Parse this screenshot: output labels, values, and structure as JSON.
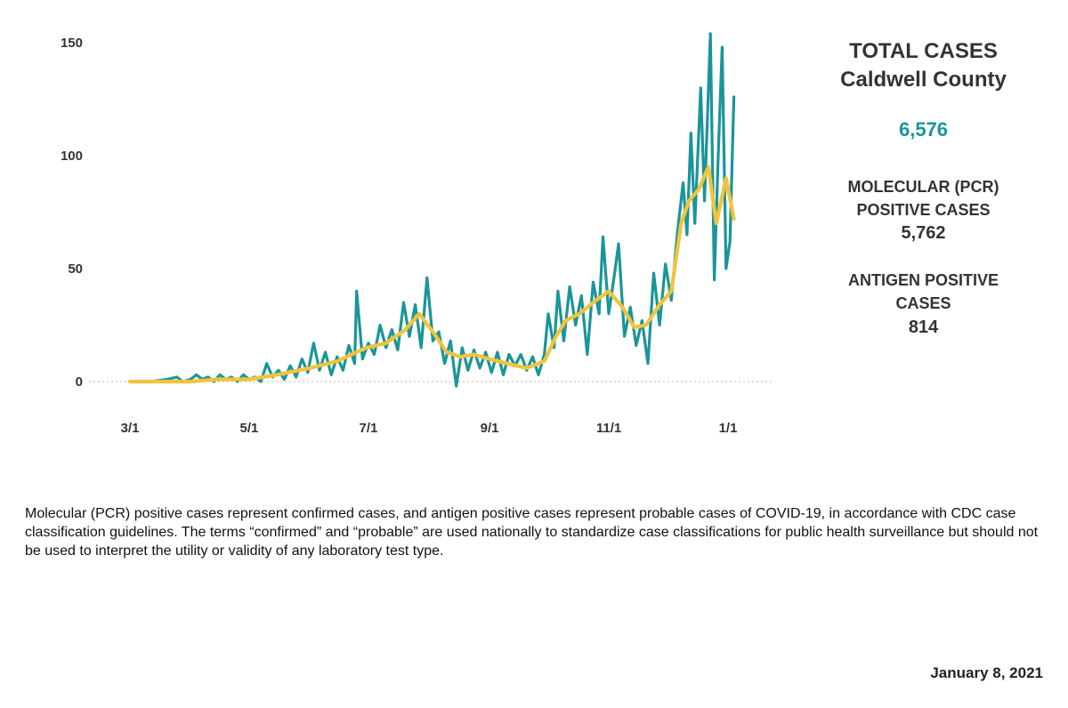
{
  "side_panel": {
    "title_line1": "TOTAL CASES",
    "title_line2": "Caldwell County",
    "total": "6,576",
    "pcr_label_line1": "MOLECULAR (PCR)",
    "pcr_label_line2": "POSITIVE CASES",
    "pcr_value": "5,762",
    "antigen_label_line1": "ANTIGEN POSITIVE",
    "antigen_label_line2": "CASES",
    "antigen_value": "814"
  },
  "footnote": "Molecular (PCR) positive cases represent confirmed cases, and antigen positive cases represent probable cases of COVID-19, in accordance with CDC case classification guidelines. The terms “confirmed” and “probable” are used nationally to standardize case classifications for public health surveillance but should not be used to interpret the utility or validity of any laboratory test type.",
  "date": "January 8, 2021",
  "colors": {
    "daily": "#1a9599",
    "average": "#f0c43c",
    "text": "#333333",
    "zero_line": "#bbbbbb"
  },
  "chart_data": {
    "type": "line",
    "title": "",
    "xlabel": "",
    "ylabel": "",
    "ylim": [
      0,
      150
    ],
    "y_ticks": [
      0,
      50,
      100,
      150
    ],
    "x_ticks": [
      {
        "label": "3/1",
        "date": "2020-03-01"
      },
      {
        "label": "5/1",
        "date": "2020-05-01"
      },
      {
        "label": "7/1",
        "date": "2020-07-01"
      },
      {
        "label": "9/1",
        "date": "2020-09-01"
      },
      {
        "label": "11/1",
        "date": "2020-11-01"
      },
      {
        "label": "1/1",
        "date": "2021-01-01"
      }
    ],
    "grid": false,
    "series": [
      {
        "key": "daily",
        "points": [
          [
            "2020-03-01",
            0
          ],
          [
            "2020-03-12",
            0
          ],
          [
            "2020-03-20",
            1
          ],
          [
            "2020-03-25",
            2
          ],
          [
            "2020-03-28",
            0
          ],
          [
            "2020-04-01",
            1
          ],
          [
            "2020-04-04",
            3
          ],
          [
            "2020-04-07",
            1
          ],
          [
            "2020-04-10",
            2
          ],
          [
            "2020-04-13",
            0
          ],
          [
            "2020-04-16",
            3
          ],
          [
            "2020-04-19",
            1
          ],
          [
            "2020-04-22",
            2
          ],
          [
            "2020-04-25",
            0
          ],
          [
            "2020-04-28",
            3
          ],
          [
            "2020-05-01",
            1
          ],
          [
            "2020-05-04",
            2
          ],
          [
            "2020-05-07",
            0
          ],
          [
            "2020-05-10",
            8
          ],
          [
            "2020-05-13",
            2
          ],
          [
            "2020-05-16",
            5
          ],
          [
            "2020-05-19",
            1
          ],
          [
            "2020-05-22",
            7
          ],
          [
            "2020-05-25",
            2
          ],
          [
            "2020-05-28",
            10
          ],
          [
            "2020-05-31",
            4
          ],
          [
            "2020-06-03",
            17
          ],
          [
            "2020-06-06",
            5
          ],
          [
            "2020-06-09",
            13
          ],
          [
            "2020-06-12",
            3
          ],
          [
            "2020-06-15",
            11
          ],
          [
            "2020-06-18",
            5
          ],
          [
            "2020-06-21",
            16
          ],
          [
            "2020-06-24",
            8
          ],
          [
            "2020-06-25",
            40
          ],
          [
            "2020-06-28",
            10
          ],
          [
            "2020-07-01",
            17
          ],
          [
            "2020-07-04",
            12
          ],
          [
            "2020-07-07",
            25
          ],
          [
            "2020-07-10",
            15
          ],
          [
            "2020-07-13",
            23
          ],
          [
            "2020-07-16",
            14
          ],
          [
            "2020-07-19",
            35
          ],
          [
            "2020-07-22",
            20
          ],
          [
            "2020-07-25",
            34
          ],
          [
            "2020-07-28",
            15
          ],
          [
            "2020-07-31",
            46
          ],
          [
            "2020-08-03",
            18
          ],
          [
            "2020-08-06",
            22
          ],
          [
            "2020-08-09",
            8
          ],
          [
            "2020-08-12",
            18
          ],
          [
            "2020-08-15",
            -2
          ],
          [
            "2020-08-18",
            15
          ],
          [
            "2020-08-21",
            5
          ],
          [
            "2020-08-24",
            14
          ],
          [
            "2020-08-27",
            6
          ],
          [
            "2020-08-30",
            13
          ],
          [
            "2020-09-02",
            4
          ],
          [
            "2020-09-05",
            13
          ],
          [
            "2020-09-08",
            3
          ],
          [
            "2020-09-11",
            12
          ],
          [
            "2020-09-14",
            7
          ],
          [
            "2020-09-17",
            12
          ],
          [
            "2020-09-20",
            5
          ],
          [
            "2020-09-23",
            11
          ],
          [
            "2020-09-26",
            3
          ],
          [
            "2020-09-29",
            12
          ],
          [
            "2020-10-01",
            30
          ],
          [
            "2020-10-04",
            15
          ],
          [
            "2020-10-06",
            40
          ],
          [
            "2020-10-09",
            18
          ],
          [
            "2020-10-12",
            42
          ],
          [
            "2020-10-15",
            25
          ],
          [
            "2020-10-18",
            38
          ],
          [
            "2020-10-21",
            12
          ],
          [
            "2020-10-24",
            44
          ],
          [
            "2020-10-27",
            30
          ],
          [
            "2020-10-29",
            64
          ],
          [
            "2020-11-01",
            30
          ],
          [
            "2020-11-04",
            48
          ],
          [
            "2020-11-06",
            61
          ],
          [
            "2020-11-09",
            20
          ],
          [
            "2020-11-12",
            33
          ],
          [
            "2020-11-15",
            16
          ],
          [
            "2020-11-18",
            27
          ],
          [
            "2020-11-21",
            8
          ],
          [
            "2020-11-24",
            48
          ],
          [
            "2020-11-27",
            25
          ],
          [
            "2020-11-30",
            52
          ],
          [
            "2020-12-03",
            36
          ],
          [
            "2020-12-06",
            65
          ],
          [
            "2020-12-09",
            88
          ],
          [
            "2020-12-11",
            65
          ],
          [
            "2020-12-13",
            110
          ],
          [
            "2020-12-15",
            70
          ],
          [
            "2020-12-18",
            130
          ],
          [
            "2020-12-20",
            80
          ],
          [
            "2020-12-23",
            154
          ],
          [
            "2020-12-25",
            45
          ],
          [
            "2020-12-27",
            100
          ],
          [
            "2020-12-29",
            148
          ],
          [
            "2020-12-31",
            50
          ],
          [
            "2021-01-02",
            62
          ],
          [
            "2021-01-04",
            126
          ]
        ]
      },
      {
        "key": "average",
        "points": [
          [
            "2020-03-01",
            0
          ],
          [
            "2020-04-01",
            0
          ],
          [
            "2020-04-15",
            1
          ],
          [
            "2020-05-01",
            1
          ],
          [
            "2020-05-15",
            3
          ],
          [
            "2020-06-01",
            6
          ],
          [
            "2020-06-15",
            9
          ],
          [
            "2020-06-30",
            15
          ],
          [
            "2020-07-10",
            17
          ],
          [
            "2020-07-20",
            23
          ],
          [
            "2020-07-27",
            30
          ],
          [
            "2020-08-03",
            22
          ],
          [
            "2020-08-10",
            13
          ],
          [
            "2020-08-17",
            11
          ],
          [
            "2020-08-24",
            12
          ],
          [
            "2020-09-01",
            10
          ],
          [
            "2020-09-10",
            8
          ],
          [
            "2020-09-20",
            6
          ],
          [
            "2020-09-29",
            9
          ],
          [
            "2020-10-05",
            20
          ],
          [
            "2020-10-10",
            27
          ],
          [
            "2020-10-17",
            30
          ],
          [
            "2020-10-24",
            35
          ],
          [
            "2020-11-01",
            40
          ],
          [
            "2020-11-08",
            33
          ],
          [
            "2020-11-14",
            24
          ],
          [
            "2020-11-20",
            25
          ],
          [
            "2020-11-27",
            34
          ],
          [
            "2020-12-03",
            40
          ],
          [
            "2020-12-08",
            70
          ],
          [
            "2020-12-12",
            80
          ],
          [
            "2020-12-17",
            85
          ],
          [
            "2020-12-22",
            95
          ],
          [
            "2020-12-26",
            70
          ],
          [
            "2020-12-31",
            90
          ],
          [
            "2021-01-04",
            72
          ]
        ]
      }
    ]
  }
}
